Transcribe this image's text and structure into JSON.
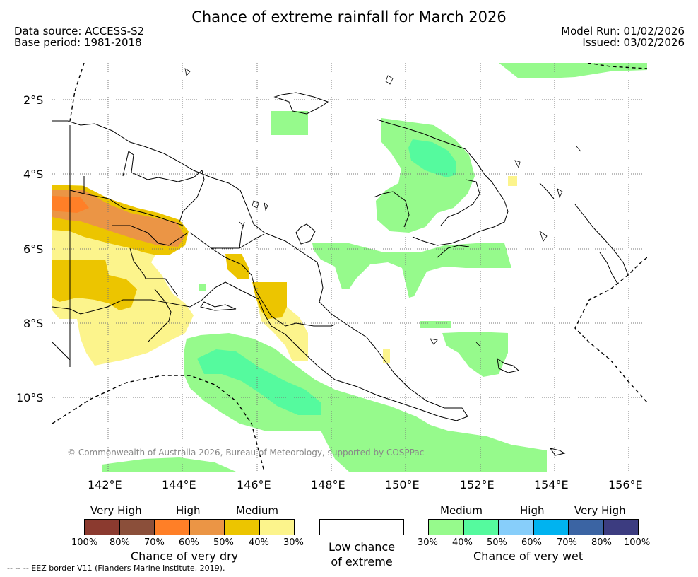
{
  "header": {
    "title": "Chance of extreme rainfall for March 2026",
    "data_source": "Data source: ACCESS-S2",
    "base_period": "Base period: 1981-2018",
    "model_run": "Model Run: 01/02/2026",
    "issued": "Issued: 03/02/2026"
  },
  "map": {
    "lat_labels": [
      "2°S",
      "4°S",
      "6°S",
      "8°S",
      "10°S"
    ],
    "lon_labels": [
      "142°E",
      "144°E",
      "146°E",
      "148°E",
      "150°E",
      "152°E",
      "154°E",
      "156°E"
    ],
    "copyright": "© Commonwealth of Australia 2026, Bureau of Meteorology, supported by COSPPac"
  },
  "legend": {
    "dry": {
      "categories": [
        "Very High",
        "High",
        "Medium"
      ],
      "ticks": [
        "100%",
        "80%",
        "70%",
        "60%",
        "50%",
        "40%",
        "30%"
      ],
      "caption": "Chance of very dry",
      "colors": [
        "#8b3a2f",
        "#8b4f3a",
        "#ff7f27",
        "#eb9545",
        "#ecc500",
        "#fcf48c"
      ]
    },
    "low": {
      "caption_line1": "Low chance",
      "caption_line2": "of extreme"
    },
    "wet": {
      "categories": [
        "Medium",
        "High",
        "Very High"
      ],
      "ticks": [
        "30%",
        "40%",
        "50%",
        "60%",
        "70%",
        "80%",
        "100%"
      ],
      "caption": "Chance of very wet",
      "colors": [
        "#96fa8c",
        "#55fa9e",
        "#87cefa",
        "#00b3f0",
        "#3b64a3",
        "#3c3c80"
      ]
    }
  },
  "footer": {
    "eez_note": "--  --  -- EEZ border V11 (Flanders Marine Institute, 2019)."
  }
}
